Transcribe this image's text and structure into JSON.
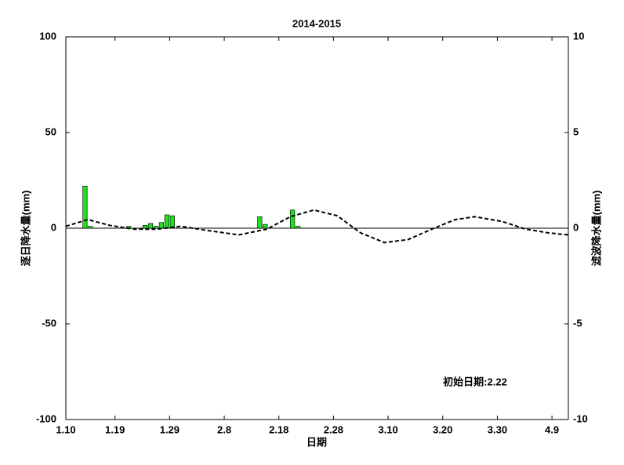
{
  "chart_data": {
    "type": "combo",
    "title": "2014-2015",
    "x_label": "日期",
    "y_label": "逐日降水量(mm)",
    "y2_label": "滤波降水量(mm)",
    "annotation": "初始日期:2.22",
    "xlim": [
      0,
      92
    ],
    "xticks": [
      {
        "value": 0,
        "label": "1.10"
      },
      {
        "value": 9,
        "label": "1.19"
      },
      {
        "value": 19,
        "label": "1.29"
      },
      {
        "value": 29,
        "label": "2.8"
      },
      {
        "value": 39,
        "label": "2.18"
      },
      {
        "value": 49,
        "label": "2.28"
      },
      {
        "value": 59,
        "label": "3.10"
      },
      {
        "value": 69,
        "label": "3.20"
      },
      {
        "value": 79,
        "label": "3.30"
      },
      {
        "value": 89,
        "label": "4.9"
      }
    ],
    "ylim": [
      -100,
      100
    ],
    "yticks": [
      -100,
      -50,
      0,
      50,
      100
    ],
    "y2lim": [
      -10,
      10
    ],
    "y2ticks": [
      -10,
      -5,
      0,
      5,
      10
    ],
    "series": [
      {
        "type": "bar",
        "color": "#22dd22",
        "x": [
          3.5,
          4.5,
          11.5,
          14.5,
          15.5,
          16.5,
          17.5,
          18.5,
          19.5,
          35.5,
          36.5,
          41.5,
          42.5
        ],
        "values": [
          22,
          1,
          1,
          1.5,
          2.5,
          1,
          3,
          7,
          6.5,
          6,
          2,
          9.5,
          1
        ]
      },
      {
        "type": "line",
        "axis": "y2",
        "color": "#000000",
        "dashed": true,
        "x": [
          0,
          4,
          8,
          12.4,
          16.7,
          21,
          25.4,
          31.7,
          36.8,
          41.1,
          45.4,
          49.7,
          54,
          58.3,
          62.6,
          67,
          71.3,
          74.9,
          79.9,
          84.2,
          88.5,
          92
        ],
        "values": [
          0.1,
          0.45,
          0.15,
          -0.05,
          -0.05,
          0.1,
          -0.1,
          -0.35,
          -0.05,
          0.6,
          0.95,
          0.65,
          -0.25,
          -0.75,
          -0.6,
          -0.05,
          0.45,
          0.6,
          0.35,
          -0.05,
          -0.25,
          -0.35
        ]
      }
    ]
  }
}
